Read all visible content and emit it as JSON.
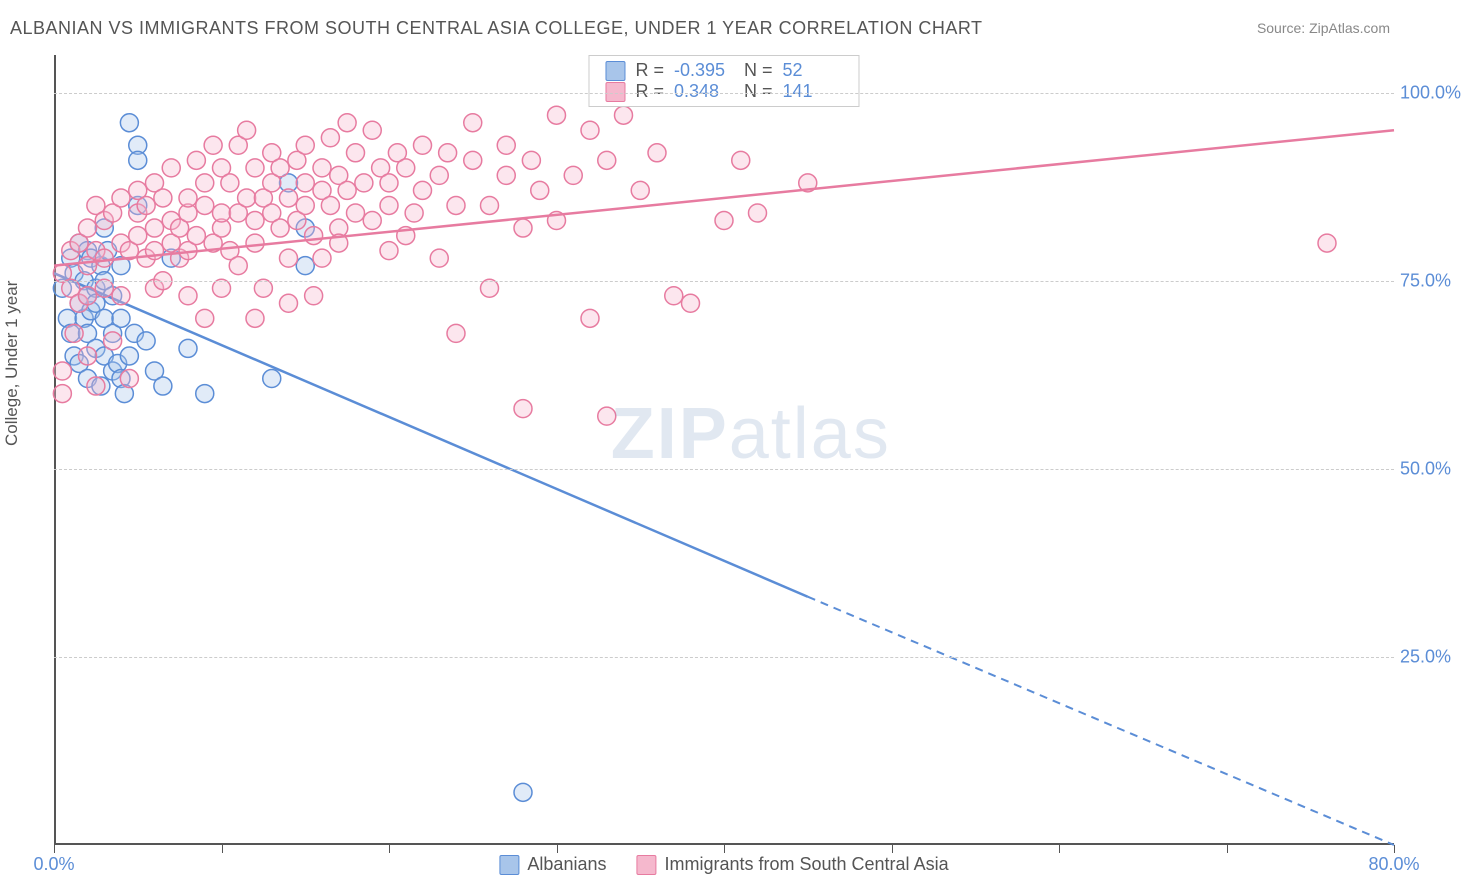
{
  "title": "ALBANIAN VS IMMIGRANTS FROM SOUTH CENTRAL ASIA COLLEGE, UNDER 1 YEAR CORRELATION CHART",
  "source": "Source: ZipAtlas.com",
  "y_axis_title": "College, Under 1 year",
  "watermark": {
    "bold": "ZIP",
    "rest": "atlas"
  },
  "chart": {
    "type": "scatter",
    "xlim": [
      0,
      80
    ],
    "ylim": [
      0,
      105
    ],
    "x_ticks": [
      0,
      10,
      20,
      30,
      40,
      50,
      60,
      70,
      80
    ],
    "x_tick_labels": [
      "0.0%",
      "",
      "",
      "",
      "",
      "",
      "",
      "",
      "80.0%"
    ],
    "y_ticks": [
      25,
      50,
      75,
      100
    ],
    "y_tick_labels": [
      "25.0%",
      "50.0%",
      "75.0%",
      "100.0%"
    ],
    "background_color": "#ffffff",
    "grid_color": "#cccccc",
    "axis_color": "#555555",
    "label_color": "#5b8dd6",
    "marker_radius": 9,
    "marker_stroke_width": 1.5,
    "marker_fill_opacity": 0.35,
    "line_width": 2.5,
    "series": [
      {
        "key": "albanians",
        "label": "Albanians",
        "R": "-0.395",
        "N": "52",
        "color_stroke": "#5b8dd6",
        "color_fill": "#a8c5ea",
        "regression": {
          "x1": 0,
          "y1": 76,
          "x2_solid": 45,
          "y2_solid": 33,
          "x2_dash": 80,
          "y2_dash": 0
        },
        "points": [
          [
            0.5,
            74
          ],
          [
            0.8,
            70
          ],
          [
            1,
            78
          ],
          [
            1,
            68
          ],
          [
            1.2,
            76
          ],
          [
            1.2,
            65
          ],
          [
            1.5,
            80
          ],
          [
            1.5,
            72
          ],
          [
            1.5,
            64
          ],
          [
            1.8,
            70
          ],
          [
            1.8,
            75
          ],
          [
            2,
            68
          ],
          [
            2,
            79
          ],
          [
            2,
            73
          ],
          [
            2,
            62
          ],
          [
            2.2,
            78
          ],
          [
            2.2,
            71
          ],
          [
            2.5,
            66
          ],
          [
            2.5,
            74
          ],
          [
            2.5,
            72
          ],
          [
            2.8,
            61
          ],
          [
            2.8,
            77
          ],
          [
            3,
            70
          ],
          [
            3,
            65
          ],
          [
            3,
            75
          ],
          [
            3,
            82
          ],
          [
            3.2,
            79
          ],
          [
            3.5,
            63
          ],
          [
            3.5,
            73
          ],
          [
            3.5,
            68
          ],
          [
            3.8,
            64
          ],
          [
            4,
            62
          ],
          [
            4,
            77
          ],
          [
            4,
            70
          ],
          [
            4.2,
            60
          ],
          [
            4.5,
            65
          ],
          [
            4.5,
            96
          ],
          [
            4.8,
            68
          ],
          [
            5,
            93
          ],
          [
            5,
            91
          ],
          [
            5,
            85
          ],
          [
            5.5,
            67
          ],
          [
            6,
            63
          ],
          [
            6.5,
            61
          ],
          [
            7,
            78
          ],
          [
            8,
            66
          ],
          [
            9,
            60
          ],
          [
            13,
            62
          ],
          [
            14,
            88
          ],
          [
            15,
            82
          ],
          [
            15,
            77
          ],
          [
            28,
            7
          ]
        ]
      },
      {
        "key": "immigrants",
        "label": "Immigrants from South Central Asia",
        "R": "0.348",
        "N": "141",
        "color_stroke": "#e77ba0",
        "color_fill": "#f5b8cd",
        "regression": {
          "x1": 0,
          "y1": 77,
          "x2_solid": 80,
          "y2_solid": 95,
          "x2_dash": 80,
          "y2_dash": 95
        },
        "points": [
          [
            0.5,
            76
          ],
          [
            0.5,
            63
          ],
          [
            0.5,
            60
          ],
          [
            1,
            79
          ],
          [
            1,
            74
          ],
          [
            1.2,
            68
          ],
          [
            1.5,
            80
          ],
          [
            1.5,
            72
          ],
          [
            2,
            82
          ],
          [
            2,
            77
          ],
          [
            2,
            73
          ],
          [
            2,
            65
          ],
          [
            2.5,
            61
          ],
          [
            2.5,
            85
          ],
          [
            2.5,
            79
          ],
          [
            3,
            83
          ],
          [
            3,
            74
          ],
          [
            3,
            78
          ],
          [
            3.5,
            84
          ],
          [
            3.5,
            67
          ],
          [
            4,
            80
          ],
          [
            4,
            86
          ],
          [
            4,
            73
          ],
          [
            4.5,
            79
          ],
          [
            4.5,
            62
          ],
          [
            5,
            87
          ],
          [
            5,
            81
          ],
          [
            5,
            84
          ],
          [
            5.5,
            85
          ],
          [
            5.5,
            78
          ],
          [
            6,
            74
          ],
          [
            6,
            82
          ],
          [
            6,
            88
          ],
          [
            6,
            79
          ],
          [
            6.5,
            86
          ],
          [
            6.5,
            75
          ],
          [
            7,
            80
          ],
          [
            7,
            90
          ],
          [
            7,
            83
          ],
          [
            7.5,
            82
          ],
          [
            7.5,
            78
          ],
          [
            8,
            84
          ],
          [
            8,
            86
          ],
          [
            8,
            79
          ],
          [
            8,
            73
          ],
          [
            8.5,
            91
          ],
          [
            8.5,
            81
          ],
          [
            9,
            70
          ],
          [
            9,
            85
          ],
          [
            9,
            88
          ],
          [
            9.5,
            80
          ],
          [
            9.5,
            93
          ],
          [
            10,
            74
          ],
          [
            10,
            82
          ],
          [
            10,
            90
          ],
          [
            10,
            84
          ],
          [
            10.5,
            88
          ],
          [
            10.5,
            79
          ],
          [
            11,
            93
          ],
          [
            11,
            84
          ],
          [
            11,
            77
          ],
          [
            11.5,
            86
          ],
          [
            11.5,
            95
          ],
          [
            12,
            90
          ],
          [
            12,
            83
          ],
          [
            12,
            70
          ],
          [
            12,
            80
          ],
          [
            12.5,
            86
          ],
          [
            12.5,
            74
          ],
          [
            13,
            88
          ],
          [
            13,
            92
          ],
          [
            13,
            84
          ],
          [
            13.5,
            82
          ],
          [
            13.5,
            90
          ],
          [
            14,
            78
          ],
          [
            14,
            86
          ],
          [
            14,
            72
          ],
          [
            14.5,
            83
          ],
          [
            14.5,
            91
          ],
          [
            15,
            85
          ],
          [
            15,
            93
          ],
          [
            15,
            88
          ],
          [
            15.5,
            73
          ],
          [
            15.5,
            81
          ],
          [
            16,
            87
          ],
          [
            16,
            90
          ],
          [
            16,
            78
          ],
          [
            16.5,
            94
          ],
          [
            16.5,
            85
          ],
          [
            17,
            89
          ],
          [
            17,
            82
          ],
          [
            17,
            80
          ],
          [
            17.5,
            96
          ],
          [
            17.5,
            87
          ],
          [
            18,
            92
          ],
          [
            18,
            84
          ],
          [
            18.5,
            88
          ],
          [
            19,
            83
          ],
          [
            19,
            95
          ],
          [
            19.5,
            90
          ],
          [
            20,
            79
          ],
          [
            20,
            88
          ],
          [
            20,
            85
          ],
          [
            20.5,
            92
          ],
          [
            21,
            81
          ],
          [
            21,
            90
          ],
          [
            21.5,
            84
          ],
          [
            22,
            93
          ],
          [
            22,
            87
          ],
          [
            23,
            89
          ],
          [
            23,
            78
          ],
          [
            23.5,
            92
          ],
          [
            24,
            85
          ],
          [
            24,
            68
          ],
          [
            25,
            91
          ],
          [
            25,
            96
          ],
          [
            26,
            74
          ],
          [
            26,
            85
          ],
          [
            27,
            89
          ],
          [
            27,
            93
          ],
          [
            28,
            82
          ],
          [
            28,
            58
          ],
          [
            28.5,
            91
          ],
          [
            29,
            87
          ],
          [
            30,
            83
          ],
          [
            30,
            97
          ],
          [
            31,
            89
          ],
          [
            32,
            95
          ],
          [
            32,
            70
          ],
          [
            33,
            57
          ],
          [
            33,
            91
          ],
          [
            34,
            97
          ],
          [
            35,
            87
          ],
          [
            36,
            92
          ],
          [
            37,
            73
          ],
          [
            38,
            72
          ],
          [
            40,
            83
          ],
          [
            41,
            91
          ],
          [
            42,
            84
          ],
          [
            45,
            88
          ],
          [
            76,
            80
          ]
        ]
      }
    ]
  },
  "legend_top_labels": {
    "R": "R =",
    "N": "N ="
  }
}
